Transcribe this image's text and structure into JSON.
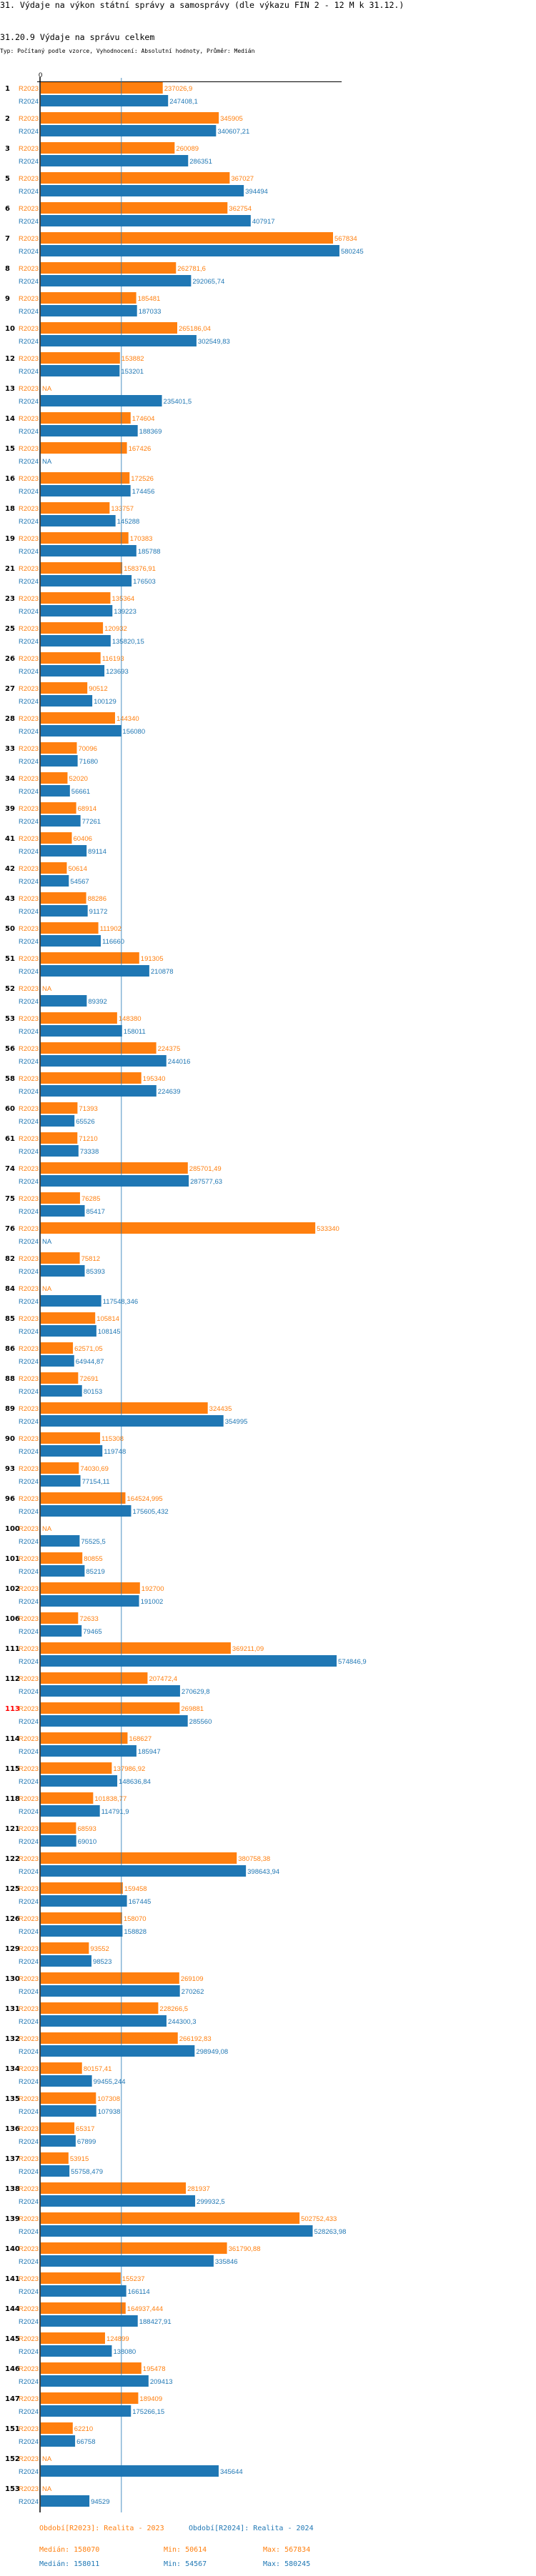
{
  "header": {
    "title": "31. Výdaje na výkon státní správy a samosprávy (dle výkazu FIN 2 - 12 M k 31.12.)",
    "subtitle": "31.20.9 Výdaje na správu celkem",
    "caption": "Typ: Počítaný podle vzorce, Vyhodnocení: Absolutní hodnoty, Průměr: Medián"
  },
  "chart_data": {
    "type": "bar",
    "orientation": "horizontal",
    "axis_zero_label": "0",
    "xlim": [
      0,
      586000
    ],
    "highlight_group": "113",
    "highlight_color": "#ff0000",
    "na_label": "NA",
    "reference_line": {
      "type": "median",
      "value": 158070
    },
    "series": [
      {
        "key": "R2023",
        "name": "R2023",
        "color": "#ff7f0e"
      },
      {
        "key": "R2024",
        "name": "R2024",
        "color": "#1f77b4"
      }
    ],
    "groups": [
      {
        "id": "1",
        "values": [
          237026.9,
          247408.1
        ]
      },
      {
        "id": "2",
        "values": [
          345905,
          340607.21
        ]
      },
      {
        "id": "3",
        "values": [
          260089,
          286351
        ]
      },
      {
        "id": "5",
        "values": [
          367027,
          394494
        ]
      },
      {
        "id": "6",
        "values": [
          362754,
          407917
        ]
      },
      {
        "id": "7",
        "values": [
          567834,
          580245
        ]
      },
      {
        "id": "8",
        "values": [
          262781.6,
          292065.74
        ]
      },
      {
        "id": "9",
        "values": [
          185481,
          187033
        ]
      },
      {
        "id": "10",
        "values": [
          265186.04,
          302549.83
        ]
      },
      {
        "id": "12",
        "values": [
          153882,
          153201
        ]
      },
      {
        "id": "13",
        "values": [
          null,
          235401.5
        ]
      },
      {
        "id": "14",
        "values": [
          174604,
          188369
        ]
      },
      {
        "id": "15",
        "values": [
          167426,
          null
        ]
      },
      {
        "id": "16",
        "values": [
          172526,
          174456
        ]
      },
      {
        "id": "18",
        "values": [
          133757,
          145288
        ]
      },
      {
        "id": "19",
        "values": [
          170383,
          185788
        ]
      },
      {
        "id": "21",
        "values": [
          158376.91,
          176503
        ]
      },
      {
        "id": "23",
        "values": [
          135364,
          139223
        ]
      },
      {
        "id": "25",
        "values": [
          120932,
          135820.15
        ]
      },
      {
        "id": "26",
        "values": [
          116193,
          123693
        ]
      },
      {
        "id": "27",
        "values": [
          90512,
          100129
        ]
      },
      {
        "id": "28",
        "values": [
          144340,
          156080
        ]
      },
      {
        "id": "33",
        "values": [
          70096,
          71680
        ]
      },
      {
        "id": "34",
        "values": [
          52020,
          56661
        ]
      },
      {
        "id": "39",
        "values": [
          68914,
          77261
        ]
      },
      {
        "id": "41",
        "values": [
          60406,
          89114
        ]
      },
      {
        "id": "42",
        "values": [
          50614,
          54567
        ]
      },
      {
        "id": "43",
        "values": [
          88286,
          91172
        ]
      },
      {
        "id": "50",
        "values": [
          111902,
          116660
        ]
      },
      {
        "id": "51",
        "values": [
          191305,
          210878
        ]
      },
      {
        "id": "52",
        "values": [
          null,
          89392
        ]
      },
      {
        "id": "53",
        "values": [
          148380,
          158011
        ]
      },
      {
        "id": "56",
        "values": [
          224375,
          244016
        ]
      },
      {
        "id": "58",
        "values": [
          195340,
          224639
        ]
      },
      {
        "id": "60",
        "values": [
          71393,
          65526
        ]
      },
      {
        "id": "61",
        "values": [
          71210,
          73338
        ]
      },
      {
        "id": "74",
        "values": [
          285701.49,
          287577.63
        ]
      },
      {
        "id": "75",
        "values": [
          76285,
          85417
        ]
      },
      {
        "id": "76",
        "values": [
          533340,
          null
        ]
      },
      {
        "id": "82",
        "values": [
          75812,
          85393
        ]
      },
      {
        "id": "84",
        "values": [
          null,
          117548.346
        ]
      },
      {
        "id": "85",
        "values": [
          105814,
          108145
        ]
      },
      {
        "id": "86",
        "values": [
          62571.05,
          64944.87
        ]
      },
      {
        "id": "88",
        "values": [
          72691,
          80153
        ]
      },
      {
        "id": "89",
        "values": [
          324435,
          354995
        ]
      },
      {
        "id": "90",
        "values": [
          115308,
          119748
        ]
      },
      {
        "id": "93",
        "values": [
          74030.69,
          77154.11
        ]
      },
      {
        "id": "96",
        "values": [
          164524.995,
          175605.432
        ]
      },
      {
        "id": "100",
        "values": [
          null,
          75525.5
        ]
      },
      {
        "id": "101",
        "values": [
          80855,
          85219
        ]
      },
      {
        "id": "102",
        "values": [
          192700,
          191002
        ]
      },
      {
        "id": "106",
        "values": [
          72633,
          79465
        ]
      },
      {
        "id": "111",
        "values": [
          369211.09,
          574846.9
        ]
      },
      {
        "id": "112",
        "values": [
          207472.4,
          270629.8
        ]
      },
      {
        "id": "113",
        "values": [
          269881,
          285560
        ]
      },
      {
        "id": "114",
        "values": [
          168627,
          185947
        ]
      },
      {
        "id": "115",
        "values": [
          137986.92,
          148636.84
        ]
      },
      {
        "id": "118",
        "values": [
          101838.77,
          114791.9
        ]
      },
      {
        "id": "121",
        "values": [
          68593,
          69010
        ]
      },
      {
        "id": "122",
        "values": [
          380758.38,
          398643.94
        ]
      },
      {
        "id": "125",
        "values": [
          159458,
          167445
        ]
      },
      {
        "id": "126",
        "values": [
          158070,
          158828
        ]
      },
      {
        "id": "129",
        "values": [
          93552,
          98523
        ]
      },
      {
        "id": "130",
        "values": [
          269109,
          270262
        ]
      },
      {
        "id": "131",
        "values": [
          228266.5,
          244300.3
        ]
      },
      {
        "id": "132",
        "values": [
          266192.83,
          298949.08
        ]
      },
      {
        "id": "134",
        "values": [
          80157.41,
          99455.244
        ]
      },
      {
        "id": "135",
        "values": [
          107308,
          107938
        ]
      },
      {
        "id": "136",
        "values": [
          65317,
          67899
        ]
      },
      {
        "id": "137",
        "values": [
          53915,
          55758.479
        ]
      },
      {
        "id": "138",
        "values": [
          281937,
          299932.5
        ]
      },
      {
        "id": "139",
        "values": [
          502752.433,
          528263.98
        ]
      },
      {
        "id": "140",
        "values": [
          361790.88,
          335846
        ]
      },
      {
        "id": "141",
        "values": [
          155237,
          166114
        ]
      },
      {
        "id": "144",
        "values": [
          164937.444,
          188427.91
        ]
      },
      {
        "id": "145",
        "values": [
          124899,
          138080
        ]
      },
      {
        "id": "146",
        "values": [
          195478,
          209413
        ]
      },
      {
        "id": "147",
        "values": [
          189409,
          175266.15
        ]
      },
      {
        "id": "151",
        "values": [
          62210,
          66758
        ]
      },
      {
        "id": "152",
        "values": [
          null,
          345644
        ]
      },
      {
        "id": "153",
        "values": [
          null,
          94529
        ]
      }
    ],
    "legend": {
      "placement": "bottom",
      "entries": [
        "Období[R2023]: Realita - 2023",
        "Období[R2024]: Realita - 2024"
      ]
    },
    "stats": [
      {
        "median": "Medián: 158070",
        "min": "Min: 50614",
        "max": "Max: 567834"
      },
      {
        "median": "Medián: 158011",
        "min": "Min: 54567",
        "max": "Max: 580245"
      }
    ]
  }
}
